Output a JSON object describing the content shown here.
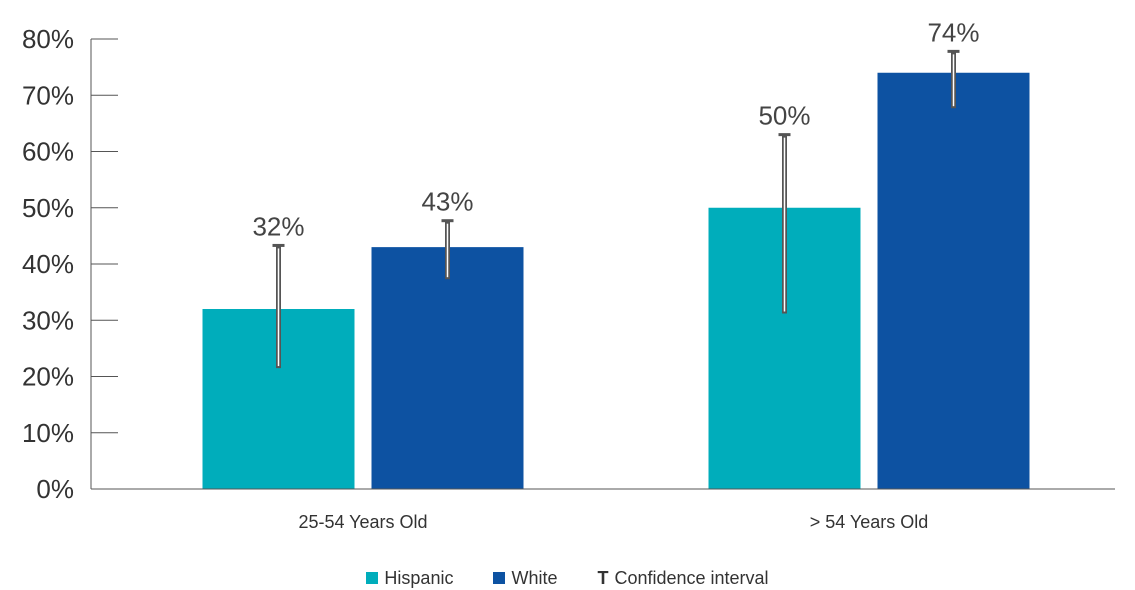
{
  "chart_data": {
    "type": "bar",
    "categories": [
      "25-54 Years Old",
      "> 54 Years Old"
    ],
    "series": [
      {
        "name": "Hispanic",
        "color": "#00ADBB",
        "values": [
          32,
          50
        ],
        "labels": [
          "32%",
          "50%"
        ],
        "ci": [
          [
            21.5,
            43.3
          ],
          [
            31.2,
            63.0
          ]
        ]
      },
      {
        "name": "White",
        "color": "#0D52A2",
        "values": [
          43,
          74
        ],
        "labels": [
          "43%",
          "74%"
        ],
        "ci": [
          [
            37.3,
            47.7
          ],
          [
            67.7,
            77.8
          ]
        ]
      }
    ],
    "ylim": [
      0,
      80
    ],
    "yticks": [
      "0%",
      "10%",
      "20%",
      "30%",
      "40%",
      "50%",
      "60%",
      "70%",
      "80%"
    ],
    "grid": false,
    "legend_position": "bottom-center",
    "legend": {
      "ci_glyph": "T",
      "ci_label": "Confidence interval"
    }
  }
}
